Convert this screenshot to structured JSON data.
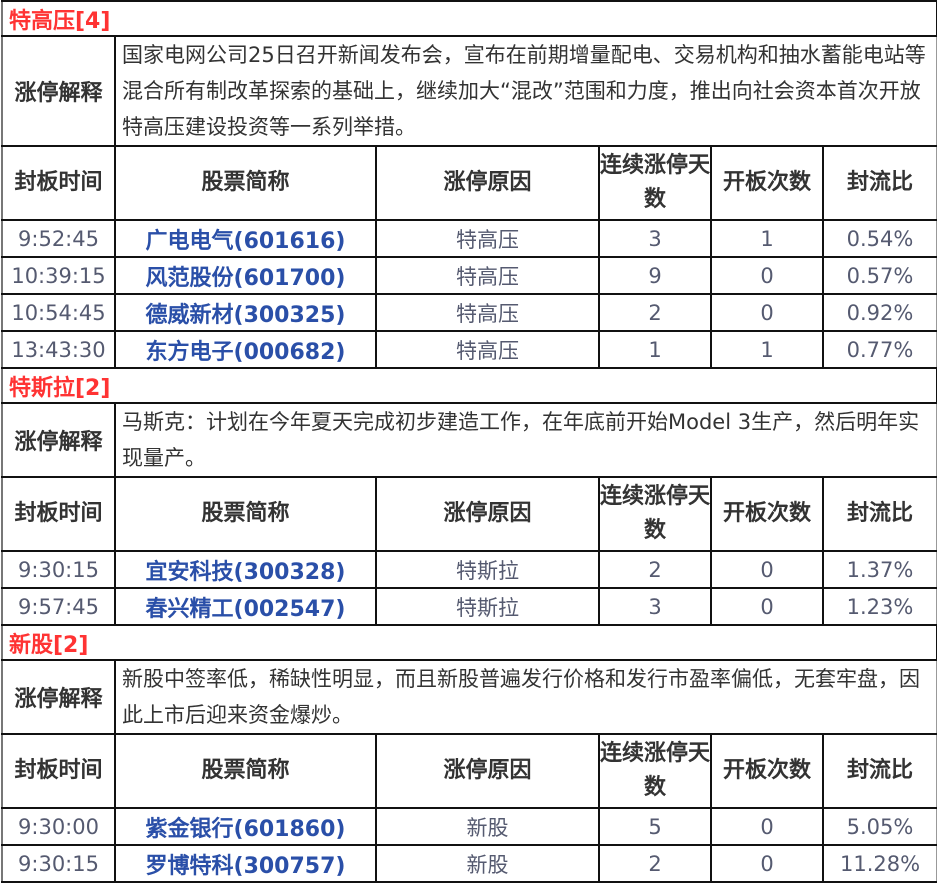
{
  "columns": [
    "封板时间",
    "股票简称",
    "涨停原因",
    "连续涨停天数",
    "开板次数",
    "封流比"
  ],
  "explanation_label": "涨停解释",
  "colors": {
    "section_title": "#ff3333",
    "stock_name": "#2a4fa8",
    "text": "#555a70"
  },
  "sections": [
    {
      "title": "特高压[4]",
      "explanation": "国家电网公司25日召开新闻发布会，宣布在前期增量配电、交易机构和抽水蓄能电站等混合所有制改革探索的基础上，继续加大“混改”范围和力度，推出向社会资本首次开放特高压建设投资等一系列举措。",
      "rows": [
        [
          "9:52:45",
          "广电电气(601616)",
          "特高压",
          "3",
          "1",
          "0.54%"
        ],
        [
          "10:39:15",
          "风范股份(601700)",
          "特高压",
          "9",
          "0",
          "0.57%"
        ],
        [
          "10:54:45",
          "德威新材(300325)",
          "特高压",
          "2",
          "0",
          "0.92%"
        ],
        [
          "13:43:30",
          "东方电子(000682)",
          "特高压",
          "1",
          "1",
          "0.77%"
        ]
      ]
    },
    {
      "title": "特斯拉[2]",
      "explanation": "马斯克：计划在今年夏天完成初步建造工作，在年底前开始Model 3生产，然后明年实现量产。",
      "rows": [
        [
          "9:30:15",
          "宜安科技(300328)",
          "特斯拉",
          "2",
          "0",
          "1.37%"
        ],
        [
          "9:57:45",
          "春兴精工(002547)",
          "特斯拉",
          "3",
          "0",
          "1.23%"
        ]
      ]
    },
    {
      "title": "新股[2]",
      "explanation": " 新股中签率低，稀缺性明显，而且新股普遍发行价格和发行市盈率偏低，无套牢盘，因此上市后迎来资金爆炒。",
      "rows": [
        [
          "9:30:00",
          "紫金银行(601860)",
          "新股",
          "5",
          "0",
          "5.05%"
        ],
        [
          "9:30:15",
          "罗博特科(300757)",
          "新股",
          "2",
          "0",
          "11.28%"
        ]
      ]
    }
  ]
}
